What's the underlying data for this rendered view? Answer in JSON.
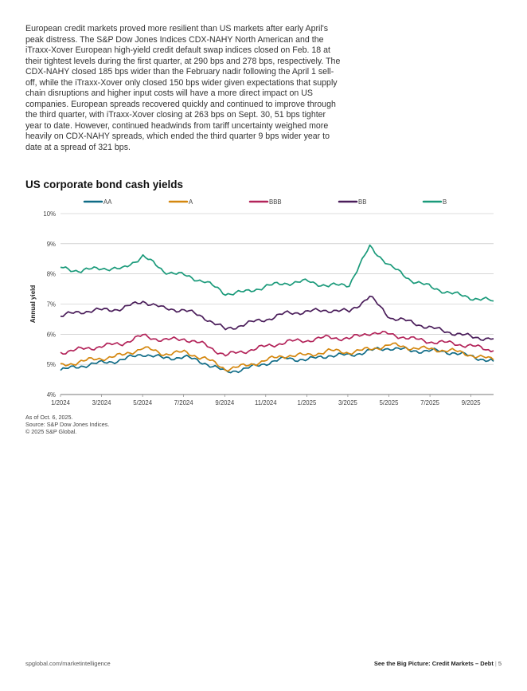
{
  "body_text": "European credit markets proved more resilient than US markets after early April's peak distress. The S&P Dow Jones Indices CDX-NAHY North American and the iTraxx-Xover European high-yield credit default swap indices closed on Feb. 18 at their tightest levels during the first quarter, at 290 bps and 278 bps, respectively. The CDX-NAHY closed 185 bps wider than the February nadir following the April 1 sell-off, while the iTraxx-Xover only closed 150 bps wider given expectations that supply chain disruptions and higher input costs will have a more direct impact on US companies. European spreads recovered quickly and continued to improve through the third quarter, with iTraxx-Xover closing at 263 bps on Sept. 30, 51 bps tighter year to date. However, continued headwinds from tariff uncertainty weighed more heavily on CDX-NAHY spreads, which ended the third quarter 9 bps wider year to date at a spread of 321 bps.",
  "chart_data": {
    "type": "line",
    "title": "US corporate bond cash yields",
    "ylabel": "Annual yield",
    "xlabel": "",
    "ylim": [
      4,
      10
    ],
    "yticks": [
      "4%",
      "5%",
      "6%",
      "7%",
      "8%",
      "9%",
      "10%"
    ],
    "xticks": [
      "1/2024",
      "3/2024",
      "5/2024",
      "7/2024",
      "9/2024",
      "11/2024",
      "1/2025",
      "3/2025",
      "5/2025",
      "7/2025",
      "9/2025"
    ],
    "x": [
      "1/2024",
      "2/2024",
      "3/2024",
      "4/2024",
      "5/2024",
      "6/2024",
      "7/2024",
      "8/2024",
      "9/2024",
      "10/2024",
      "11/2024",
      "12/2024",
      "1/2025",
      "2/2025",
      "3/2025",
      "4/2025",
      "5/2025",
      "6/2025",
      "7/2025",
      "8/2025",
      "9/2025",
      "10/2025"
    ],
    "grid": true,
    "legend_position": "top",
    "series": [
      {
        "name": "AA",
        "color": "#0f6b86",
        "values": [
          4.8,
          4.95,
          5.05,
          5.15,
          5.35,
          5.2,
          5.25,
          5.05,
          4.75,
          4.85,
          5.05,
          5.2,
          5.15,
          5.3,
          5.3,
          5.45,
          5.55,
          5.45,
          5.45,
          5.4,
          5.25,
          5.1
        ]
      },
      {
        "name": "A",
        "color": "#d4870f",
        "values": [
          4.95,
          5.1,
          5.2,
          5.3,
          5.55,
          5.35,
          5.4,
          5.2,
          4.85,
          4.95,
          5.15,
          5.3,
          5.3,
          5.45,
          5.4,
          5.5,
          5.65,
          5.55,
          5.5,
          5.45,
          5.3,
          5.15
        ]
      },
      {
        "name": "BBB",
        "color": "#b3245a",
        "values": [
          5.4,
          5.5,
          5.6,
          5.7,
          5.95,
          5.8,
          5.85,
          5.65,
          5.3,
          5.45,
          5.6,
          5.75,
          5.8,
          5.9,
          5.85,
          6.05,
          6.0,
          5.85,
          5.75,
          5.7,
          5.6,
          5.45
        ]
      },
      {
        "name": "BB",
        "color": "#4a1d5a",
        "values": [
          6.6,
          6.75,
          6.8,
          6.85,
          7.1,
          6.85,
          6.8,
          6.55,
          6.15,
          6.35,
          6.5,
          6.7,
          6.75,
          6.8,
          6.75,
          7.25,
          6.55,
          6.4,
          6.2,
          6.05,
          5.9,
          5.85
        ]
      },
      {
        "name": "B",
        "color": "#1a9a7a",
        "values": [
          8.2,
          8.1,
          8.2,
          8.15,
          8.6,
          8.1,
          7.95,
          7.75,
          7.35,
          7.4,
          7.6,
          7.7,
          7.75,
          7.6,
          7.65,
          8.9,
          8.25,
          7.8,
          7.55,
          7.35,
          7.2,
          7.1
        ]
      }
    ]
  },
  "notes": {
    "as_of": "As of Oct. 6, 2025.",
    "source": "Source: S&P Dow Jones Indices.",
    "copyright": "© 2025 S&P Global."
  },
  "footer": {
    "url": "spglobal.com/marketintelligence",
    "doc_title": "See the Big Picture: Credit Markets – Debt",
    "separator": "|",
    "page": "5"
  }
}
